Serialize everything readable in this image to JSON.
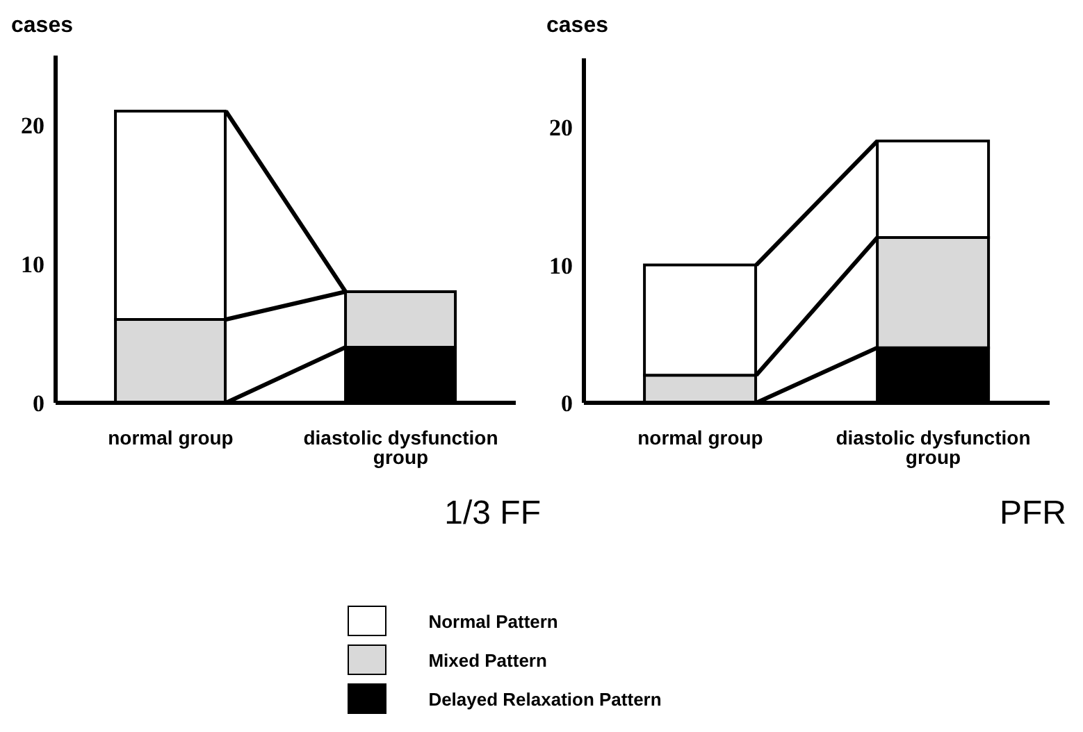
{
  "chart_data": [
    {
      "type": "bar",
      "stacked": true,
      "ylabel": "cases",
      "categories": [
        "normal group",
        "diastolic dysfunction group"
      ],
      "series": [
        {
          "name": "Delayed Relaxation Pattern",
          "color": "#000000",
          "values": [
            0,
            4
          ]
        },
        {
          "name": "Mixed Pattern",
          "color": "#d9d9d9",
          "values": [
            6,
            4
          ]
        },
        {
          "name": "Normal Pattern",
          "color": "#ffffff",
          "values": [
            15,
            0
          ]
        }
      ],
      "ylim": [
        0,
        25
      ],
      "yticks": [
        0,
        10,
        20
      ],
      "grid": false,
      "legend": "bottom",
      "annotations": [
        "1/3 FF"
      ]
    },
    {
      "type": "bar",
      "stacked": true,
      "ylabel": "cases",
      "categories": [
        "normal group",
        "diastolic dysfunction group"
      ],
      "series": [
        {
          "color": "#000000",
          "values": [
            0,
            4
          ]
        },
        {
          "color": "#d9d9d9",
          "values": [
            2,
            8
          ]
        },
        {
          "color": "#ffffff",
          "values": [
            8,
            7
          ]
        }
      ],
      "ylim": [
        0,
        25
      ],
      "yticks": [
        0,
        10,
        20
      ],
      "grid": false,
      "annotations": [
        "PFR"
      ]
    }
  ]
}
